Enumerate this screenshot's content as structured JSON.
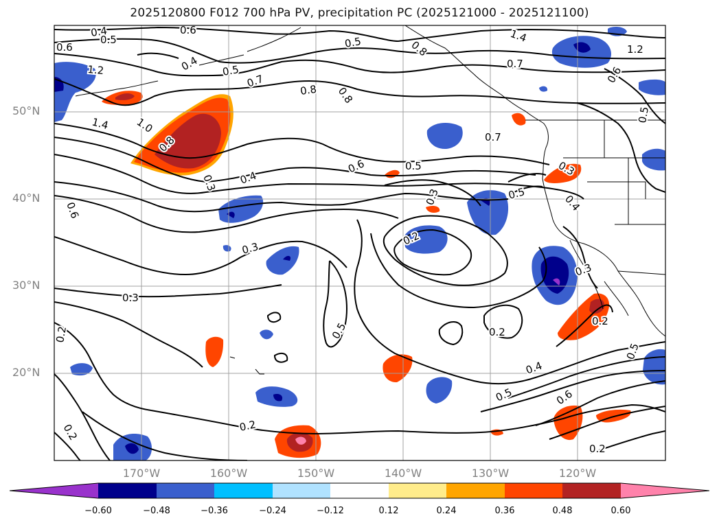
{
  "title": "2025120800 F012 700 hPa PV, precipitation PC (2025121000 - 2025121100)",
  "map": {
    "lat_ticks": [
      {
        "label": "50°N",
        "lat": 50
      },
      {
        "label": "40°N",
        "lat": 40
      },
      {
        "label": "30°N",
        "lat": 30
      },
      {
        "label": "20°N",
        "lat": 20
      }
    ],
    "lon_ticks": [
      {
        "label": "170°W",
        "lon": -170
      },
      {
        "label": "160°W",
        "lon": -160
      },
      {
        "label": "150°W",
        "lon": -150
      },
      {
        "label": "140°W",
        "lon": -140
      },
      {
        "label": "130°W",
        "lon": -130
      },
      {
        "label": "120°W",
        "lon": -120
      }
    ],
    "contour_labels": [
      "0.4",
      "0.6",
      "0.5",
      "0.5",
      "0.8",
      "1.4",
      "1.2",
      "0.6",
      "0.7",
      "0.8",
      "0.4",
      "0.5",
      "1.2",
      "0.7",
      "0.8",
      "1.4",
      "1.0",
      "0.8",
      "0.3",
      "0.4",
      "0.6",
      "0.5",
      "0.6",
      "0.7",
      "0.3",
      "0.5",
      "0.3",
      "0.4",
      "0.2",
      "0.3",
      "0.5",
      "0.3",
      "0.3",
      "0.2",
      "0.2",
      "0.5",
      "0.4",
      "0.5",
      "0.6",
      "0.2",
      "0.2",
      "0.2",
      "0.2",
      "0.5",
      "0.6"
    ]
  },
  "colorbar": {
    "labels": [
      "−0.60",
      "−0.48",
      "−0.36",
      "−0.24",
      "−0.12",
      "0.12",
      "0.24",
      "0.36",
      "0.48",
      "0.60"
    ],
    "colors": [
      "#9932cc",
      "#00008b",
      "#3a5fcd",
      "#00bfff",
      "#b0e2ff",
      "#ffffff",
      "#ffec8b",
      "#ffa500",
      "#ff4500",
      "#b22222",
      "#ff82ab"
    ]
  }
}
